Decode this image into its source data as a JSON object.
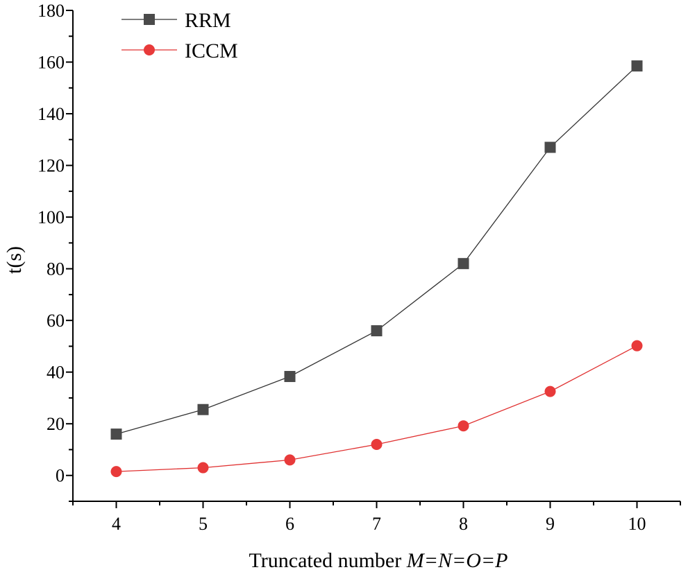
{
  "chart_data": {
    "type": "line",
    "title": "",
    "xlabel_prefix": "Truncated number ",
    "xlabel_math": "M=N=O=P",
    "ylabel": "t(s)",
    "x": [
      4,
      5,
      6,
      7,
      8,
      9,
      10
    ],
    "xticks": [
      "4",
      "5",
      "6",
      "7",
      "8",
      "9",
      "10"
    ],
    "yticks": [
      "0",
      "20",
      "40",
      "60",
      "80",
      "100",
      "120",
      "140",
      "160",
      "180"
    ],
    "xlim": [
      3.5,
      10.5
    ],
    "ylim": [
      -10,
      180
    ],
    "series": [
      {
        "name": "RRM",
        "marker": "square",
        "line_color": "#333333",
        "marker_color": "#4a4a4a",
        "values": [
          16,
          25.5,
          38.3,
          56,
          82,
          127,
          158.5
        ]
      },
      {
        "name": "ICCM",
        "marker": "circle",
        "line_color": "#e03030",
        "marker_color": "#e83a3a",
        "values": [
          1.5,
          3,
          6,
          12,
          19.2,
          32.5,
          50.2
        ]
      }
    ],
    "legend": "top-left",
    "grid": false
  }
}
